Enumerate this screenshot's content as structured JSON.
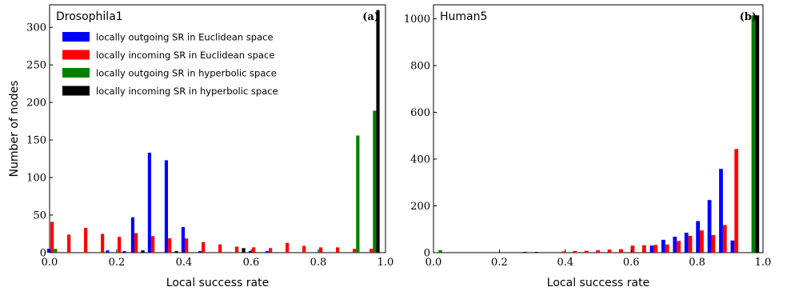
{
  "chart_data": [
    {
      "type": "bar",
      "title": "Drosophila1",
      "panel_label": "(a)",
      "xlabel": "Local success rate",
      "ylabel": "Number of nodes",
      "xlim": [
        0.0,
        1.0
      ],
      "ylim": [
        0,
        330
      ],
      "xticks": [
        0.0,
        0.2,
        0.4,
        0.6,
        0.8,
        1.0
      ],
      "xtick_labels": [
        "0.0",
        "0.2",
        "0.4",
        "0.6",
        "0.8",
        "1.0"
      ],
      "yticks": [
        0,
        50,
        100,
        150,
        200,
        250,
        300
      ],
      "ytick_labels": [
        "0",
        "50",
        "100",
        "150",
        "200",
        "250",
        "300"
      ],
      "bin_centers": [
        0.0125,
        0.0375,
        0.0625,
        0.0875,
        0.1125,
        0.1375,
        0.1625,
        0.1875,
        0.2125,
        0.2375,
        0.2625,
        0.2875,
        0.3125,
        0.3375,
        0.3625,
        0.3875,
        0.4125,
        0.4375,
        0.4625,
        0.4875,
        0.5125,
        0.5375,
        0.5625,
        0.5875,
        0.6125,
        0.6375,
        0.6625,
        0.6875,
        0.7125,
        0.7375,
        0.7625,
        0.7875,
        0.8125,
        0.8375,
        0.8625,
        0.8875,
        0.9125,
        0.9375,
        0.9625,
        0.9875
      ],
      "legend_position": "top-left",
      "series": [
        {
          "name": "locally outgoing SR in Euclidean space",
          "color": "#0000ff",
          "values": [
            5,
            0,
            0,
            0,
            0,
            0,
            0,
            3,
            0,
            2,
            47,
            0,
            133,
            0,
            123,
            0,
            34,
            0,
            2,
            0,
            0,
            0,
            0,
            0,
            2,
            0,
            2,
            0,
            0,
            0,
            0,
            0,
            0,
            0,
            0,
            0,
            0,
            0,
            0,
            0
          ]
        },
        {
          "name": "locally incoming SR in Euclidean space",
          "color": "#ff0000",
          "values": [
            41,
            0,
            24,
            0,
            33,
            0,
            25,
            0,
            21,
            0,
            26,
            0,
            22,
            0,
            19,
            0,
            19,
            0,
            14,
            0,
            11,
            0,
            8,
            0,
            7,
            0,
            6,
            0,
            13,
            0,
            9,
            0,
            7,
            0,
            7,
            0,
            5,
            0,
            5,
            0
          ]
        },
        {
          "name": "locally outgoing SR in hyperbolic space",
          "color": "#008000",
          "values": [
            5,
            0,
            0,
            0,
            0,
            0,
            0,
            0,
            0,
            0,
            0,
            0,
            0,
            0,
            0,
            0,
            0,
            0,
            0,
            0,
            0,
            0,
            0,
            0,
            0,
            0,
            0,
            0,
            0,
            0,
            0,
            0,
            0,
            0,
            0,
            0,
            156,
            0,
            189,
            0
          ]
        },
        {
          "name": "locally incoming SR in hyperbolic space",
          "color": "#000000",
          "values": [
            0,
            0,
            0,
            0,
            0,
            0,
            0,
            0,
            0,
            0,
            3,
            0,
            0,
            0,
            2,
            0,
            0,
            0,
            0,
            0,
            0,
            0,
            6,
            0,
            0,
            0,
            0,
            0,
            0,
            0,
            0,
            0,
            0,
            0,
            0,
            0,
            0,
            0,
            323,
            0
          ]
        }
      ]
    },
    {
      "type": "bar",
      "title": "Human5",
      "panel_label": "(b)",
      "xlabel": "Local success rate",
      "ylabel": "",
      "xlim": [
        0.0,
        1.0
      ],
      "ylim": [
        0,
        1060
      ],
      "xticks": [
        0.0,
        0.2,
        0.4,
        0.6,
        0.8,
        1.0
      ],
      "xtick_labels": [
        "0.0",
        "0.2",
        "0.4",
        "0.6",
        "0.8",
        "1.0"
      ],
      "yticks": [
        0,
        200,
        400,
        600,
        800,
        1000
      ],
      "ytick_labels": [
        "0",
        "200",
        "400",
        "600",
        "800",
        "1000"
      ],
      "bin_centers": [
        0.015,
        0.05,
        0.085,
        0.12,
        0.155,
        0.19,
        0.225,
        0.26,
        0.295,
        0.33,
        0.365,
        0.4,
        0.435,
        0.47,
        0.505,
        0.54,
        0.575,
        0.61,
        0.645,
        0.68,
        0.715,
        0.75,
        0.785,
        0.82,
        0.855,
        0.89,
        0.925,
        0.965
      ],
      "series": [
        {
          "name": "locally outgoing SR in Euclidean space",
          "color": "#0000ff",
          "values": [
            0,
            0,
            0,
            0,
            0,
            0,
            0,
            0,
            0,
            0,
            0,
            0,
            0,
            0,
            0,
            0,
            0,
            0,
            0,
            30,
            55,
            68,
            85,
            135,
            225,
            358,
            52,
            0
          ]
        },
        {
          "name": "locally incoming SR in Euclidean space",
          "color": "#ff0000",
          "values": [
            0,
            0,
            0,
            0,
            0,
            0,
            0,
            0,
            0,
            0,
            0,
            5,
            7,
            8,
            10,
            13,
            15,
            30,
            32,
            33,
            35,
            50,
            72,
            95,
            75,
            118,
            443,
            0
          ]
        },
        {
          "name": "locally outgoing SR in hyperbolic space",
          "color": "#008000",
          "values": [
            10,
            0,
            0,
            0,
            0,
            0,
            0,
            0,
            0,
            0,
            0,
            0,
            0,
            0,
            0,
            0,
            0,
            0,
            0,
            0,
            0,
            0,
            0,
            0,
            0,
            0,
            0,
            1015
          ]
        },
        {
          "name": "locally incoming SR in hyperbolic space",
          "color": "#000000",
          "values": [
            0,
            0,
            0,
            0,
            0,
            0,
            0,
            3,
            3,
            0,
            0,
            0,
            0,
            0,
            0,
            0,
            0,
            0,
            0,
            0,
            0,
            0,
            0,
            0,
            0,
            0,
            0,
            1015
          ]
        }
      ]
    }
  ]
}
